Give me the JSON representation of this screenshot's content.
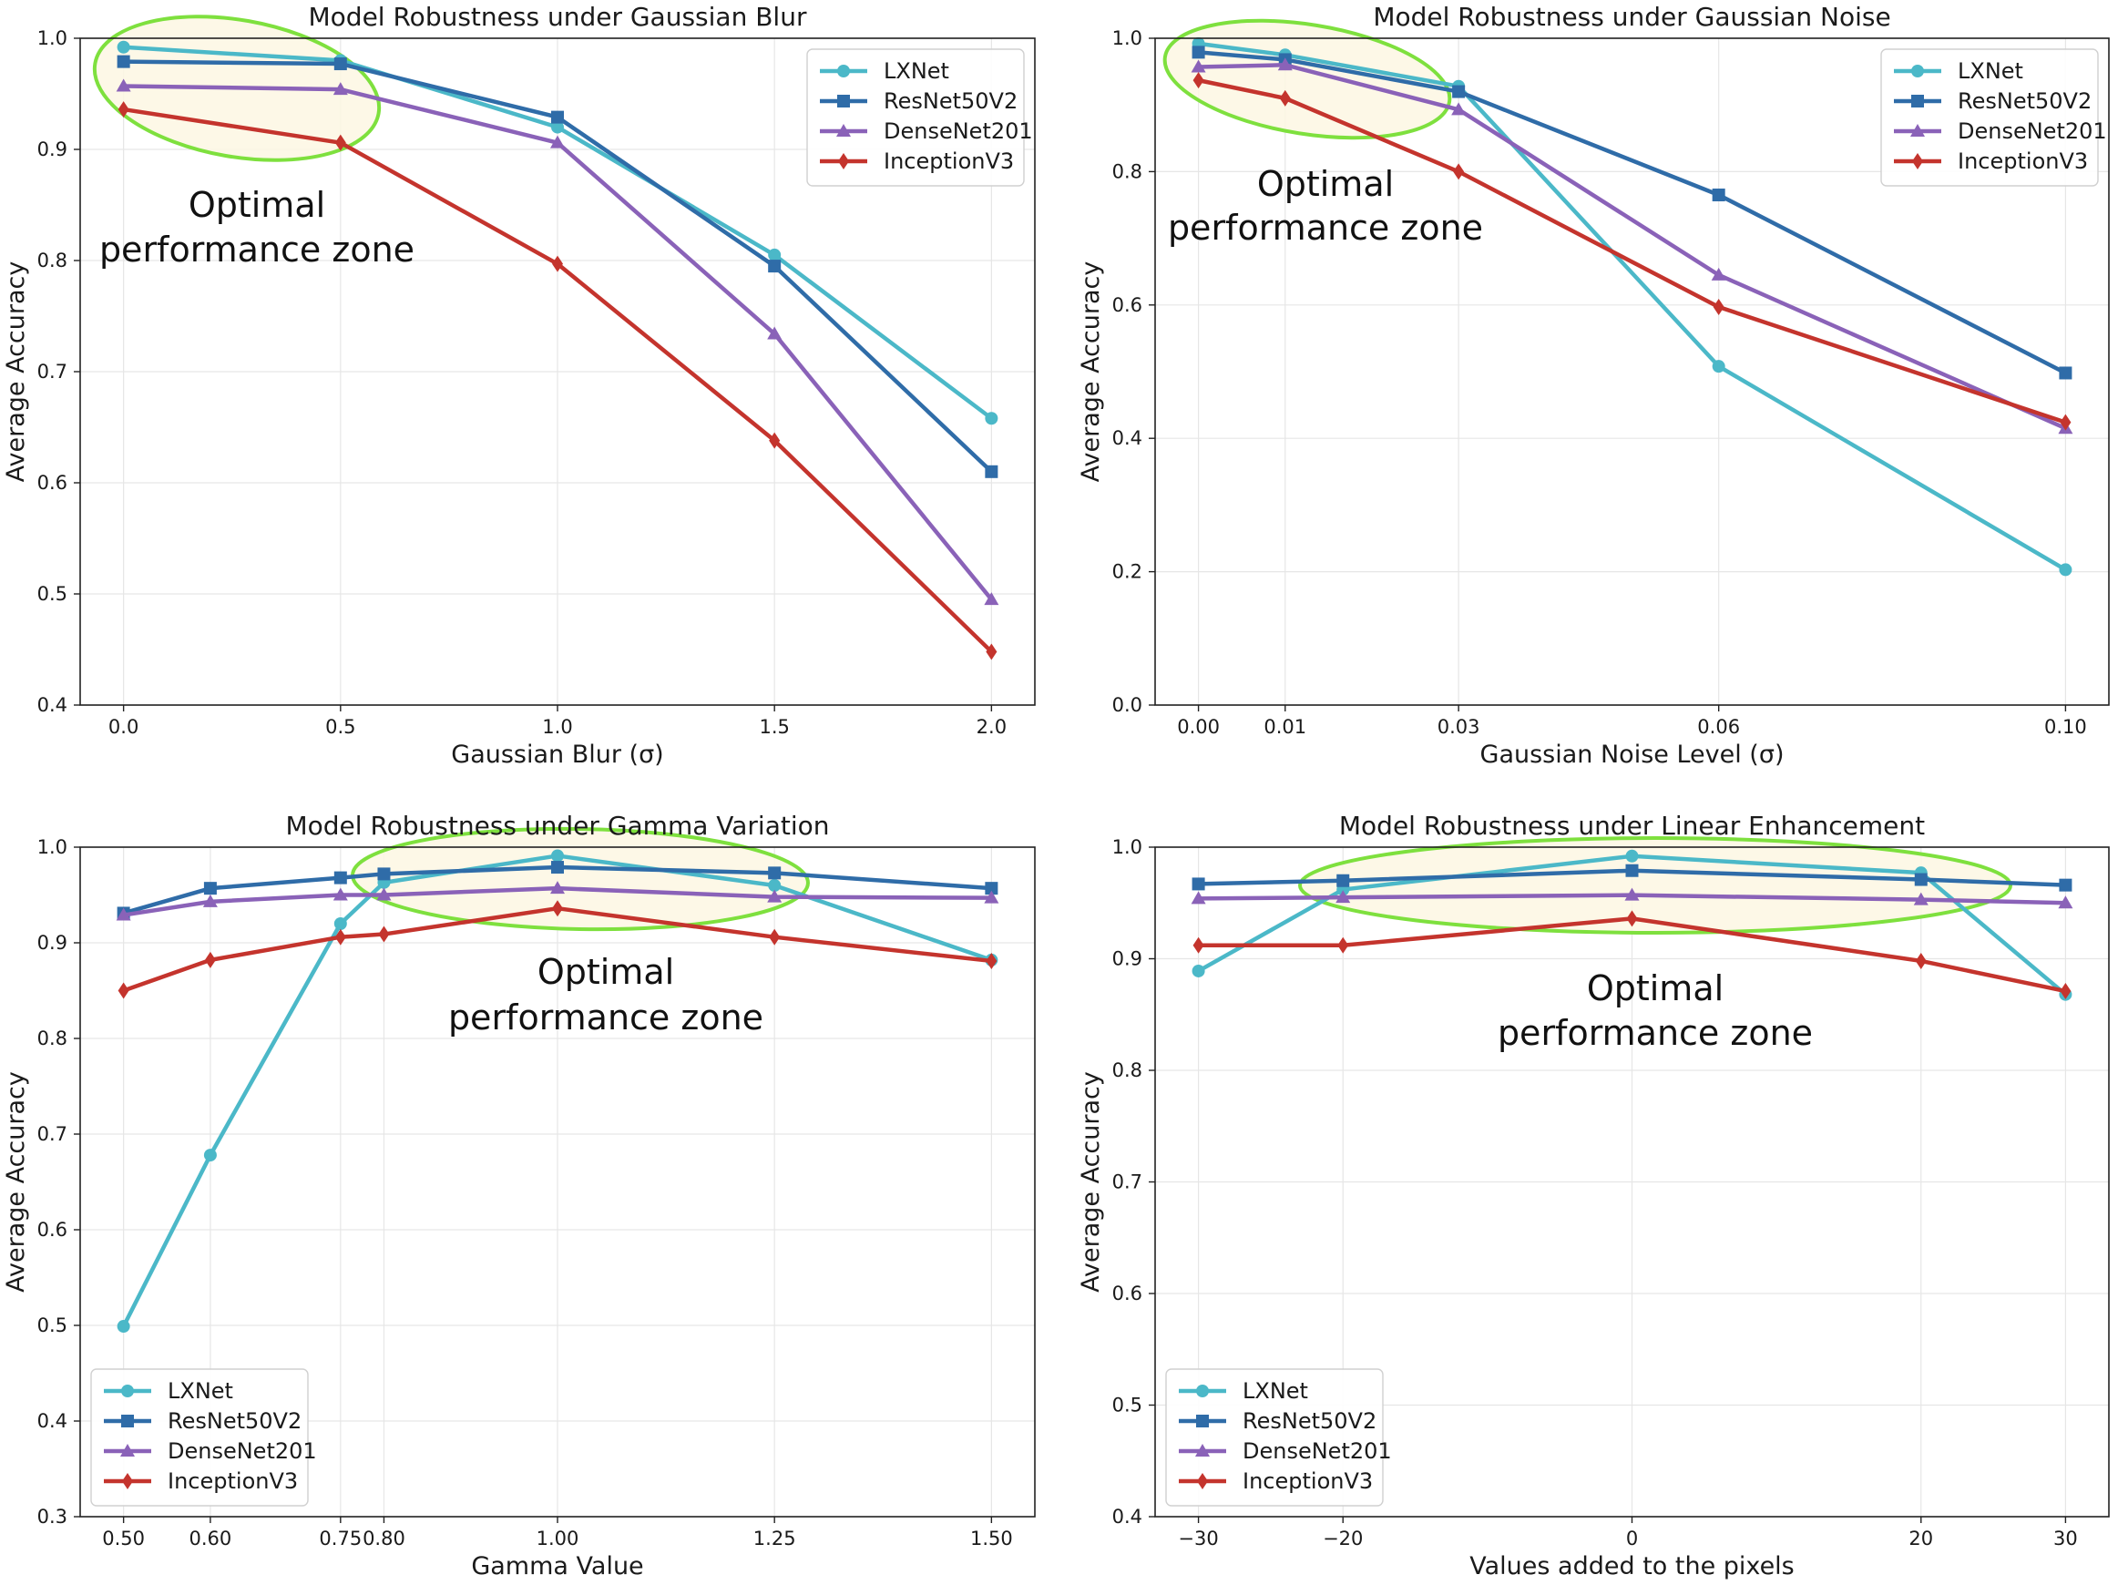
{
  "colors": {
    "lxnet": "#4bb8c8",
    "resnet": "#2f6ca8",
    "densenet": "#8a62b8",
    "inception": "#c4342d",
    "zone_stroke": "#7ee03e",
    "zone_fill": "#fdf7e3",
    "grid": "#e6e6e6"
  },
  "chart_data": [
    {
      "type": "line",
      "title": "Model Robustness under Gaussian Blur",
      "xlabel": "Gaussian Blur (σ)",
      "ylabel": "Average Accuracy",
      "x": [
        0.0,
        0.5,
        1.0,
        1.5,
        2.0
      ],
      "xticks": [
        0.0,
        0.5,
        1.0,
        1.5,
        2.0
      ],
      "xtick_labels": [
        "0.0",
        "0.5",
        "1.0",
        "1.5",
        "2.0"
      ],
      "yticks": [
        0.4,
        0.5,
        0.6,
        0.7,
        0.8,
        0.9,
        1.0
      ],
      "ytick_labels": [
        "0.4",
        "0.5",
        "0.6",
        "0.7",
        "0.8",
        "0.9",
        "1.0"
      ],
      "xlim": [
        -0.1,
        2.1
      ],
      "ylim": [
        0.4,
        1.0
      ],
      "grid": true,
      "legend_position": "top-right",
      "annotation": [
        "Optimal",
        "performance zone"
      ],
      "series": [
        {
          "name": "LXNet",
          "marker": "circle",
          "values": [
            0.992,
            0.98,
            0.92,
            0.805,
            0.658
          ]
        },
        {
          "name": "ResNet50V2",
          "marker": "square",
          "values": [
            0.979,
            0.977,
            0.929,
            0.795,
            0.61
          ]
        },
        {
          "name": "DenseNet201",
          "marker": "triangle",
          "values": [
            0.957,
            0.954,
            0.906,
            0.734,
            0.495
          ]
        },
        {
          "name": "InceptionV3",
          "marker": "diamond",
          "values": [
            0.936,
            0.906,
            0.797,
            0.638,
            0.448
          ]
        }
      ]
    },
    {
      "type": "line",
      "title": "Model Robustness under Gaussian Noise",
      "xlabel": "Gaussian Noise Level (σ)",
      "ylabel": "Average Accuracy",
      "x": [
        0.0,
        0.01,
        0.03,
        0.06,
        0.1
      ],
      "xticks": [
        0.0,
        0.01,
        0.03,
        0.06,
        0.1
      ],
      "xtick_labels": [
        "0.00",
        "0.01",
        "0.03",
        "0.06",
        "0.10"
      ],
      "yticks": [
        0.0,
        0.2,
        0.4,
        0.6,
        0.8,
        1.0
      ],
      "ytick_labels": [
        "0.0",
        "0.2",
        "0.4",
        "0.6",
        "0.8",
        "1.0"
      ],
      "xlim": [
        -0.005,
        0.105
      ],
      "ylim": [
        0.0,
        1.0
      ],
      "grid": true,
      "legend_position": "top-right",
      "annotation": [
        "Optimal",
        "performance zone"
      ],
      "series": [
        {
          "name": "LXNet",
          "marker": "circle",
          "values": [
            0.992,
            0.975,
            0.928,
            0.508,
            0.203
          ]
        },
        {
          "name": "ResNet50V2",
          "marker": "square",
          "values": [
            0.979,
            0.968,
            0.92,
            0.765,
            0.498
          ]
        },
        {
          "name": "DenseNet201",
          "marker": "triangle",
          "values": [
            0.957,
            0.96,
            0.893,
            0.645,
            0.415
          ]
        },
        {
          "name": "InceptionV3",
          "marker": "diamond",
          "values": [
            0.937,
            0.91,
            0.8,
            0.597,
            0.424
          ]
        }
      ]
    },
    {
      "type": "line",
      "title": "Model Robustness under Gamma Variation",
      "xlabel": "Gamma Value",
      "ylabel": "Average Accuracy",
      "x": [
        0.5,
        0.6,
        0.75,
        0.8,
        1.0,
        1.25,
        1.5
      ],
      "xticks": [
        0.5,
        0.6,
        0.75,
        0.8,
        1.0,
        1.25,
        1.5
      ],
      "xtick_labels": [
        "0.50",
        "0.60",
        "0.75",
        "0.80",
        "1.00",
        "1.25",
        "1.50"
      ],
      "yticks": [
        0.3,
        0.4,
        0.5,
        0.6,
        0.7,
        0.8,
        0.9,
        1.0
      ],
      "ytick_labels": [
        "0.3",
        "0.4",
        "0.5",
        "0.6",
        "0.7",
        "0.8",
        "0.9",
        "1.0"
      ],
      "xlim": [
        0.45,
        1.55
      ],
      "ylim": [
        0.3,
        1.0
      ],
      "grid": true,
      "legend_position": "lower-left",
      "annotation": [
        "Optimal",
        "performance zone"
      ],
      "series": [
        {
          "name": "LXNet",
          "marker": "circle",
          "values": [
            0.499,
            0.678,
            0.92,
            0.963,
            0.991,
            0.96,
            0.882
          ]
        },
        {
          "name": "ResNet50V2",
          "marker": "square",
          "values": [
            0.931,
            0.957,
            0.968,
            0.972,
            0.979,
            0.973,
            0.957
          ]
        },
        {
          "name": "DenseNet201",
          "marker": "triangle",
          "values": [
            0.929,
            0.943,
            0.95,
            0.95,
            0.957,
            0.948,
            0.947
          ]
        },
        {
          "name": "InceptionV3",
          "marker": "diamond",
          "values": [
            0.85,
            0.882,
            0.906,
            0.909,
            0.936,
            0.906,
            0.881
          ]
        }
      ]
    },
    {
      "type": "line",
      "title": "Model Robustness under Linear Enhancement",
      "xlabel": "Values added to the pixels",
      "ylabel": "Average Accuracy",
      "x": [
        -30,
        -20,
        0,
        20,
        30
      ],
      "xticks": [
        -30,
        -20,
        0,
        20,
        30
      ],
      "xtick_labels": [
        "−30",
        "−20",
        "0",
        "20",
        "30"
      ],
      "yticks": [
        0.4,
        0.5,
        0.6,
        0.7,
        0.8,
        0.9,
        1.0
      ],
      "ytick_labels": [
        "0.4",
        "0.5",
        "0.6",
        "0.7",
        "0.8",
        "0.9",
        "1.0"
      ],
      "xlim": [
        -33,
        33
      ],
      "ylim": [
        0.4,
        1.0
      ],
      "grid": true,
      "legend_position": "lower-left",
      "annotation": [
        "Optimal",
        "performance zone"
      ],
      "series": [
        {
          "name": "LXNet",
          "marker": "circle",
          "values": [
            0.889,
            0.962,
            0.992,
            0.977,
            0.868
          ]
        },
        {
          "name": "ResNet50V2",
          "marker": "square",
          "values": [
            0.967,
            0.97,
            0.979,
            0.971,
            0.966
          ]
        },
        {
          "name": "DenseNet201",
          "marker": "triangle",
          "values": [
            0.954,
            0.955,
            0.957,
            0.953,
            0.95
          ]
        },
        {
          "name": "InceptionV3",
          "marker": "diamond",
          "values": [
            0.912,
            0.912,
            0.936,
            0.898,
            0.871
          ]
        }
      ]
    }
  ]
}
